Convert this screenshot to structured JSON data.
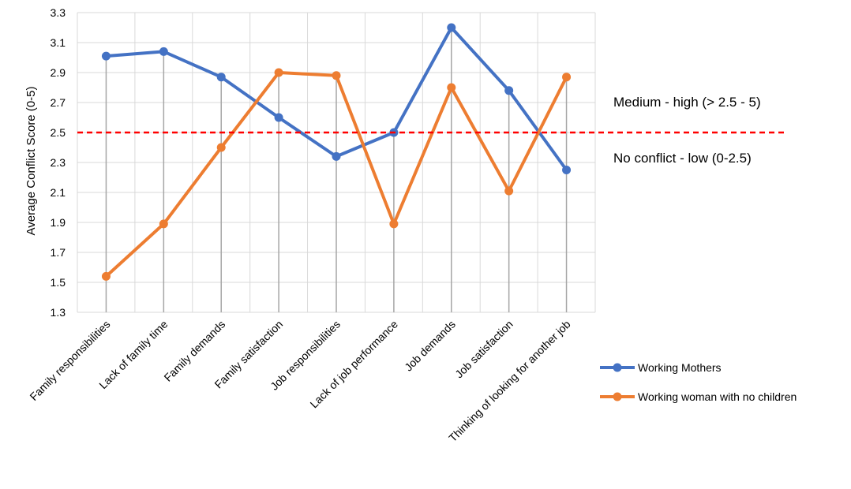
{
  "chart_data": {
    "type": "line",
    "title": "",
    "xlabel": "",
    "ylabel": "Average Conflict Score (0-5)",
    "ylim": [
      1.3,
      3.3
    ],
    "yticks": [
      "1.3",
      "1.5",
      "1.7",
      "1.9",
      "2.1",
      "2.3",
      "2.5",
      "2.7",
      "2.9",
      "3.1",
      "3.3"
    ],
    "grid": true,
    "legend_position": "bottom-right",
    "categories": [
      "Family responsibilities",
      "Lack of family time",
      "Family demands",
      "Family satisfaction",
      "Job responsibilities",
      "Lack of job performance",
      "Job demands",
      "Job satisfaction",
      "Thinking of looking for another job"
    ],
    "series": [
      {
        "name": "Working Mothers",
        "color": "#4472c4",
        "values": [
          3.01,
          3.04,
          2.87,
          2.6,
          2.34,
          2.5,
          3.2,
          2.78,
          2.25
        ]
      },
      {
        "name": "Working woman with no children",
        "color": "#ed7d31",
        "values": [
          1.54,
          1.89,
          2.4,
          2.9,
          2.88,
          1.89,
          2.8,
          2.11,
          2.87
        ]
      }
    ],
    "threshold": {
      "value": 2.5,
      "color": "#ff0000",
      "label_above": "Medium - high (> 2.5 - 5)",
      "label_below": "No conflict - low (0-2.5)"
    }
  }
}
